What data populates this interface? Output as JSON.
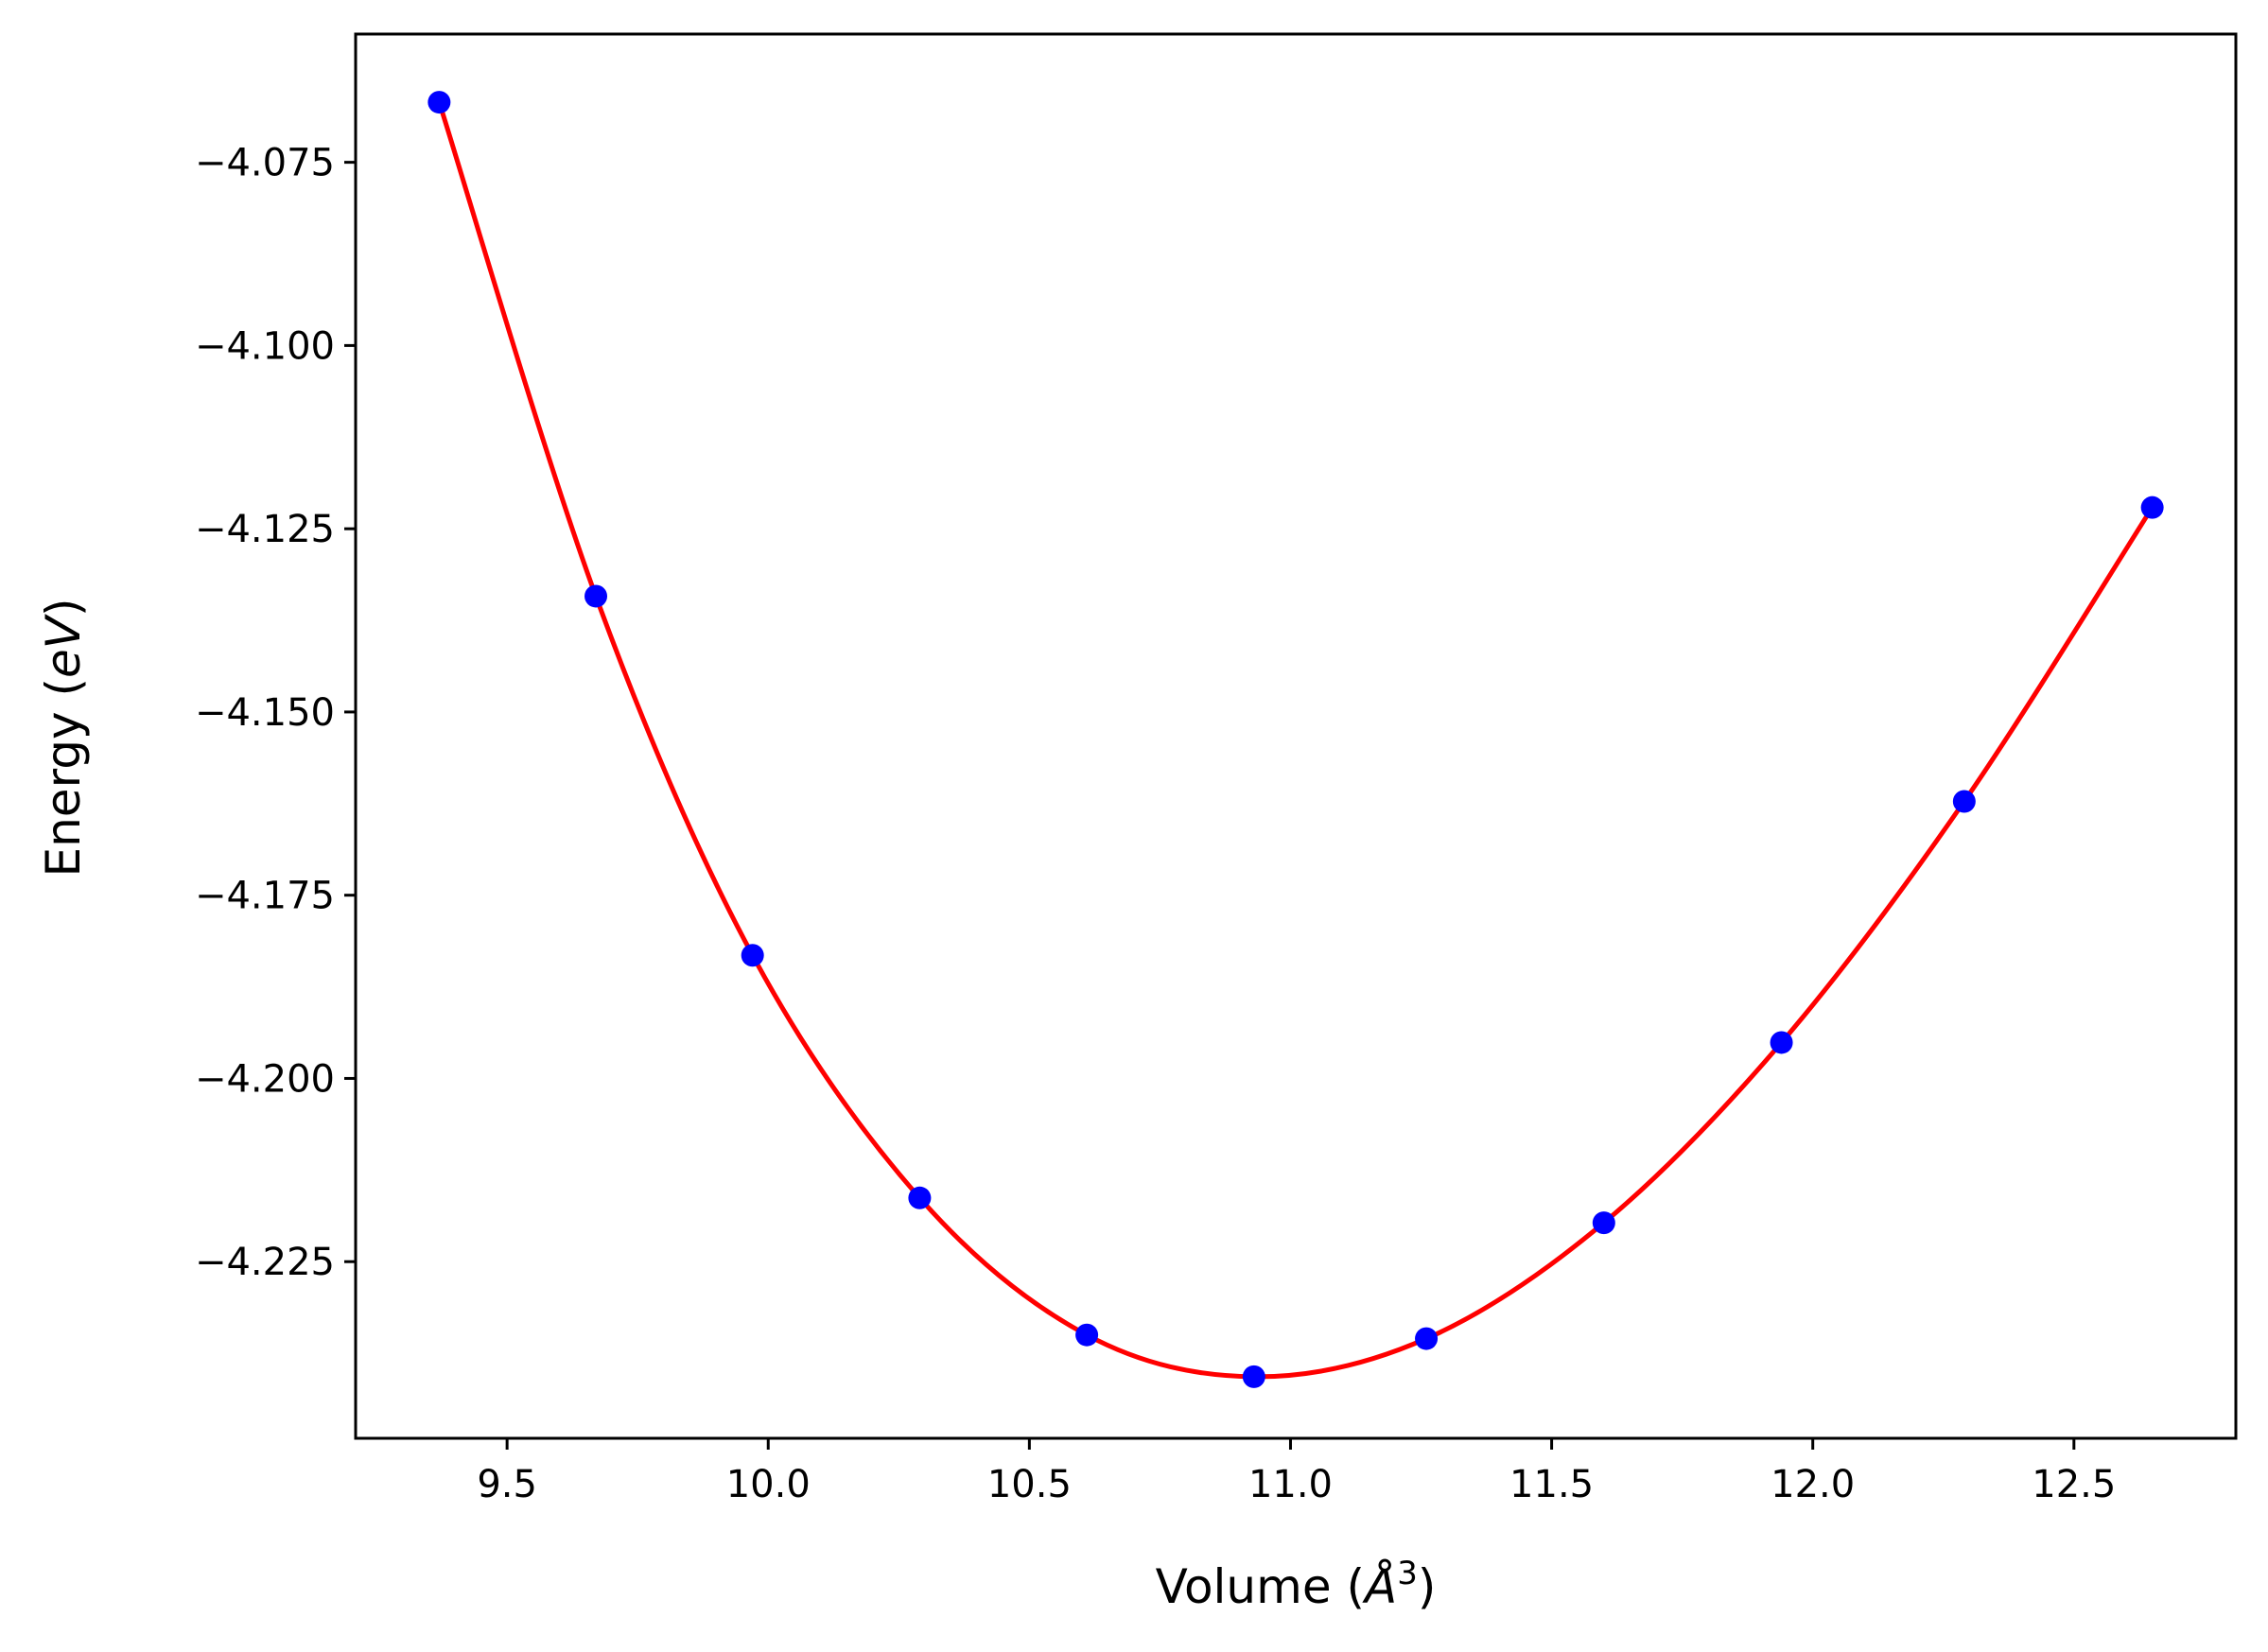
{
  "chart_data": {
    "type": "scatter",
    "title": "",
    "xlabel": "Volume (Å³)",
    "xlabel_parts": {
      "prefix": "Volume (",
      "unit": "Å",
      "sup": "3",
      "suffix": ")"
    },
    "ylabel": "Energy (eV)",
    "ylabel_parts": {
      "prefix": "Energy (",
      "unit": "eV",
      "suffix": ")"
    },
    "xlim": [
      9.21,
      12.81
    ],
    "ylim": [
      -4.2491,
      -4.0575
    ],
    "x_ticks": [
      9.5,
      10.0,
      10.5,
      11.0,
      11.5,
      12.0,
      12.5
    ],
    "x_tick_labels": [
      "9.5",
      "10.0",
      "10.5",
      "11.0",
      "11.5",
      "12.0",
      "12.5"
    ],
    "y_ticks": [
      -4.075,
      -4.1,
      -4.125,
      -4.15,
      -4.175,
      -4.2,
      -4.225
    ],
    "y_tick_labels": [
      "−4.075",
      "−4.100",
      "−4.125",
      "−4.150",
      "−4.175",
      "−4.200",
      "−4.225"
    ],
    "grid": false,
    "legend": "none",
    "series": [
      {
        "kind": "points",
        "color": "#0000ff",
        "x": [
          9.37,
          9.67,
          9.97,
          10.29,
          10.61,
          10.93,
          11.26,
          11.6,
          11.94,
          12.29,
          12.65
        ],
        "y": [
          -4.0668,
          -4.1342,
          -4.1832,
          -4.2163,
          -4.235,
          -4.2407,
          -4.2355,
          -4.2197,
          -4.1951,
          -4.1622,
          -4.1221
        ]
      },
      {
        "kind": "fit",
        "color": "#ff0000",
        "x": [
          9.37,
          9.67,
          9.97,
          10.29,
          10.61,
          10.93,
          11.26,
          11.6,
          11.94,
          12.29,
          12.65
        ],
        "y": [
          -4.0668,
          -4.1342,
          -4.1832,
          -4.2163,
          -4.235,
          -4.2407,
          -4.2355,
          -4.2197,
          -4.1951,
          -4.1622,
          -4.1221
        ]
      }
    ]
  }
}
